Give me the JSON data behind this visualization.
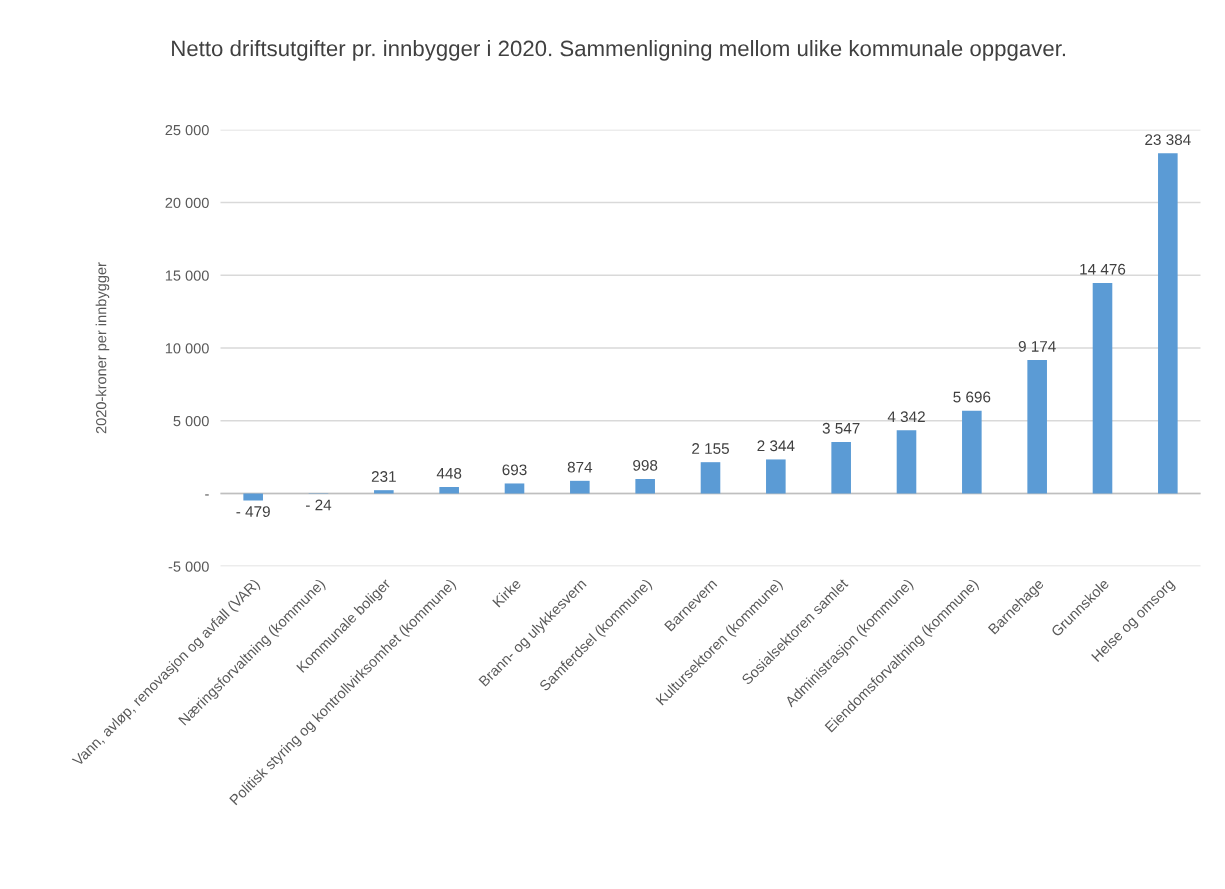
{
  "chart_data": {
    "type": "bar",
    "title": "Netto driftsutgifter pr. innbygger i 2020. Sammenligning mellom ulike kommunale oppgaver.",
    "ylabel": "2020-kroner per innbygger",
    "categories": [
      "Vann, avløp, renovasjon og avfall (VAR)",
      "Næringsforvaltning (kommune)",
      "Kommunale boliger",
      "Politisk styring og kontrollvirksomhet (kommune)",
      "Kirke",
      "Brann- og ulykkesvern",
      "Samferdsel (kommune)",
      "Barnevern",
      "Kultursektoren (kommune)",
      "Sosialsektoren samlet",
      "Administrasjon (kommune)",
      "Eiendomsforvaltning (kommune)",
      "Barnehage",
      "Grunnskole",
      "Helse og omsorg"
    ],
    "values": [
      -479,
      -24,
      231,
      448,
      693,
      874,
      998,
      2155,
      2344,
      3547,
      4342,
      5696,
      9174,
      14476,
      23384
    ],
    "value_labels": [
      "- 479",
      "- 24",
      "231",
      "448",
      "693",
      "874",
      "998",
      "2 155",
      "2 344",
      "3 547",
      "4 342",
      "5 696",
      "9 174",
      "14 476",
      "23 384"
    ],
    "color": "#5b9bd5",
    "ylim": [
      -5000,
      25000
    ],
    "yticks": [
      {
        "value": -5000,
        "label": "-5 000"
      },
      {
        "value": 0,
        "label": "-"
      },
      {
        "value": 5000,
        "label": "5 000"
      },
      {
        "value": 10000,
        "label": "10 000"
      },
      {
        "value": 15000,
        "label": "15 000"
      },
      {
        "value": 20000,
        "label": "20 000"
      },
      {
        "value": 25000,
        "label": "25 000"
      }
    ],
    "grid": "y",
    "legend": false
  }
}
